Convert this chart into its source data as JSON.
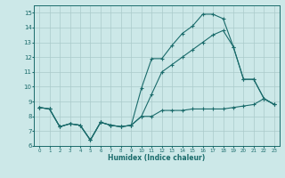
{
  "background_color": "#cce8e8",
  "grid_color": "#aacaca",
  "line_color": "#1a6b6b",
  "marker_color": "#1a6b6b",
  "xlabel": "Humidex (Indice chaleur)",
  "ylim": [
    6,
    15.5
  ],
  "xlim": [
    -0.5,
    23.5
  ],
  "yticks": [
    6,
    7,
    8,
    9,
    10,
    11,
    12,
    13,
    14,
    15
  ],
  "xticks": [
    0,
    1,
    2,
    3,
    4,
    5,
    6,
    7,
    8,
    9,
    10,
    11,
    12,
    13,
    14,
    15,
    16,
    17,
    18,
    19,
    20,
    21,
    22,
    23
  ],
  "series1_x": [
    0,
    1,
    2,
    3,
    4,
    5,
    6,
    7,
    8,
    9,
    10,
    11,
    12,
    13,
    14,
    15,
    16,
    17,
    18,
    19,
    20,
    21,
    22,
    23
  ],
  "series1_y": [
    8.6,
    8.5,
    7.3,
    7.5,
    7.4,
    6.4,
    7.6,
    7.4,
    7.3,
    7.4,
    8.0,
    8.0,
    8.4,
    8.4,
    8.4,
    8.5,
    8.5,
    8.5,
    8.5,
    8.6,
    8.7,
    8.8,
    9.2,
    8.8
  ],
  "series2_x": [
    0,
    1,
    2,
    3,
    4,
    5,
    6,
    7,
    8,
    9,
    10,
    11,
    12,
    13,
    14,
    15,
    16,
    17,
    18,
    19,
    20,
    21,
    22,
    23
  ],
  "series2_y": [
    8.6,
    8.5,
    7.3,
    7.5,
    7.4,
    6.4,
    7.6,
    7.4,
    7.3,
    7.4,
    9.9,
    11.9,
    11.9,
    12.8,
    13.6,
    14.1,
    14.9,
    14.9,
    14.6,
    12.7,
    10.5,
    10.5,
    9.2,
    8.8
  ],
  "series3_x": [
    0,
    1,
    2,
    3,
    4,
    5,
    6,
    7,
    8,
    9,
    10,
    11,
    12,
    13,
    14,
    15,
    16,
    17,
    18,
    19,
    20,
    21,
    22,
    23
  ],
  "series3_y": [
    8.6,
    8.5,
    7.3,
    7.5,
    7.4,
    6.4,
    7.6,
    7.4,
    7.3,
    7.4,
    8.0,
    9.5,
    11.0,
    11.5,
    12.0,
    12.5,
    13.0,
    13.5,
    13.8,
    12.7,
    10.5,
    10.5,
    9.2,
    8.8
  ]
}
